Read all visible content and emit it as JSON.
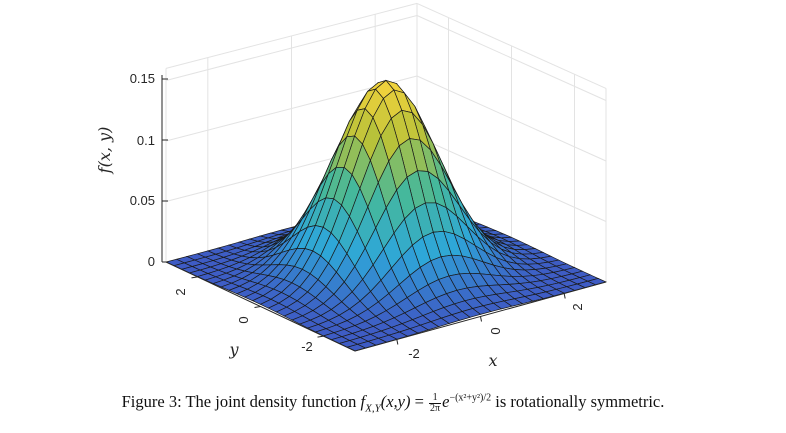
{
  "figure": {
    "z_label": "f(x, y)",
    "x_label": "x",
    "y_label": "y",
    "z_ticks": [
      "0.15",
      "0.1",
      "0.05",
      "0"
    ],
    "x_ticks": [
      "-2",
      "0",
      "2"
    ],
    "y_ticks": [
      "2",
      "0",
      "-2"
    ]
  },
  "caption": {
    "prefix": "Figure 3: The joint density function",
    "func_name": "f",
    "func_sub": "X,Y",
    "func_args": "(x,y)",
    "equals": "=",
    "frac_num": "1",
    "frac_den": "2π",
    "exp_base": "e",
    "exponent": "−(x²+y²)/2",
    "suffix": "is rotationally symmetric."
  },
  "chart_data": {
    "type": "surface",
    "function": "f(x,y) = exp(-(x^2+y^2)/2) / (2*pi)",
    "x_range": [
      -3,
      3
    ],
    "y_range": [
      -3,
      3
    ],
    "zlim": [
      0,
      0.16
    ],
    "grid_steps": 24,
    "colormap": "parula",
    "colors": [
      "#3e5bc4",
      "#2ea7d8",
      "#46b89a",
      "#b6c13a",
      "#f6d43c"
    ],
    "xlabel": "x",
    "ylabel": "y",
    "zlabel": "f(x, y)",
    "grid": true
  }
}
